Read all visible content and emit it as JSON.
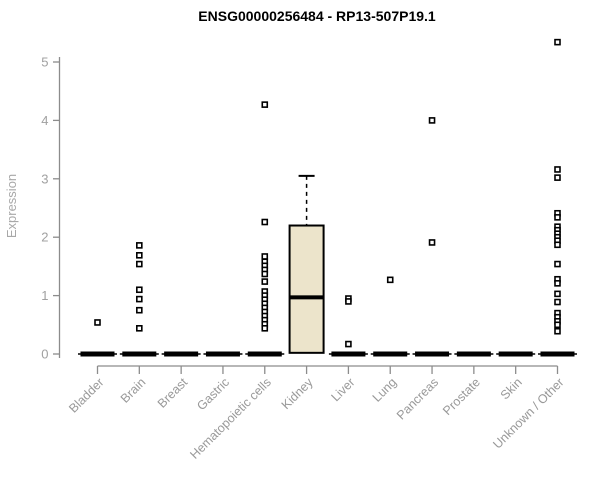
{
  "title": "ENSG00000256484 - RP13-507P19.1",
  "chart_data": {
    "type": "boxplot",
    "title": "ENSG00000256484 - RP13-507P19.1",
    "xlabel": "",
    "ylabel": "Expression",
    "ylim": [
      0,
      5.4
    ],
    "yticks": [
      0,
      1,
      2,
      3,
      4,
      5
    ],
    "grid": false,
    "legend": "none",
    "categories": [
      "Bladder",
      "Brain",
      "Breast",
      "Gastric",
      "Hematopoietic cells",
      "Kidney",
      "Liver",
      "Lung",
      "Pancreas",
      "Prostate",
      "Skin",
      "Unknown / Other"
    ],
    "series": [
      {
        "category": "Bladder",
        "box": {
          "q1": 0,
          "median": 0,
          "q3": 0,
          "whisker_low": 0,
          "whisker_high": 0
        },
        "points": [
          0.54
        ]
      },
      {
        "category": "Brain",
        "box": {
          "q1": 0,
          "median": 0,
          "q3": 0,
          "whisker_low": 0,
          "whisker_high": 0
        },
        "points": [
          1.86,
          1.69,
          1.54,
          1.1,
          0.94,
          0.75,
          0.44
        ]
      },
      {
        "category": "Breast",
        "box": {
          "q1": 0,
          "median": 0,
          "q3": 0,
          "whisker_low": 0,
          "whisker_high": 0
        },
        "points": []
      },
      {
        "category": "Gastric",
        "box": {
          "q1": 0,
          "median": 0,
          "q3": 0,
          "whisker_low": 0,
          "whisker_high": 0
        },
        "points": []
      },
      {
        "category": "Hematopoietic cells",
        "box": {
          "q1": 0,
          "median": 0,
          "q3": 0,
          "whisker_low": 0,
          "whisker_high": 0
        },
        "points": [
          4.27,
          2.26,
          1.67,
          1.58,
          1.51,
          1.44,
          1.37,
          1.24,
          1.07,
          1.0,
          0.93,
          0.86,
          0.79,
          0.72,
          0.65,
          0.58,
          0.51,
          0.44
        ]
      },
      {
        "category": "Kidney",
        "box": {
          "q1": 0.02,
          "median": 0.97,
          "q3": 2.2,
          "whisker_low": 0.02,
          "whisker_high": 3.05
        },
        "points": []
      },
      {
        "category": "Liver",
        "box": {
          "q1": 0,
          "median": 0,
          "q3": 0,
          "whisker_low": 0,
          "whisker_high": 0
        },
        "points": [
          0.95,
          0.9,
          0.17
        ]
      },
      {
        "category": "Lung",
        "box": {
          "q1": 0,
          "median": 0,
          "q3": 0,
          "whisker_low": 0,
          "whisker_high": 0
        },
        "points": [
          1.27
        ]
      },
      {
        "category": "Pancreas",
        "box": {
          "q1": 0,
          "median": 0,
          "q3": 0,
          "whisker_low": 0,
          "whisker_high": 0
        },
        "points": [
          4.0,
          1.91
        ]
      },
      {
        "category": "Prostate",
        "box": {
          "q1": 0,
          "median": 0,
          "q3": 0,
          "whisker_low": 0,
          "whisker_high": 0
        },
        "points": []
      },
      {
        "category": "Skin",
        "box": {
          "q1": 0,
          "median": 0,
          "q3": 0,
          "whisker_low": 0,
          "whisker_high": 0
        },
        "points": []
      },
      {
        "category": "Unknown / Other",
        "box": {
          "q1": 0,
          "median": 0,
          "q3": 0,
          "whisker_low": 0,
          "whisker_high": 0
        },
        "points": [
          5.34,
          3.16,
          3.02,
          2.41,
          2.34,
          2.18,
          2.12,
          2.06,
          2.0,
          1.94,
          1.87,
          1.54,
          1.28,
          1.21,
          1.03,
          0.89,
          0.7,
          0.63,
          0.56,
          0.5,
          0.39
        ]
      }
    ],
    "colors": {
      "box_fill": "#ece4cb",
      "box_stroke": "#000000",
      "median": "#000000",
      "point_stroke": "#000000",
      "point_fill": "#ffffff",
      "axis": "#8c8c8c",
      "tick_label": "#a0a0a0",
      "category_label": "#999999",
      "title": "#000000",
      "background": "#ffffff"
    }
  }
}
